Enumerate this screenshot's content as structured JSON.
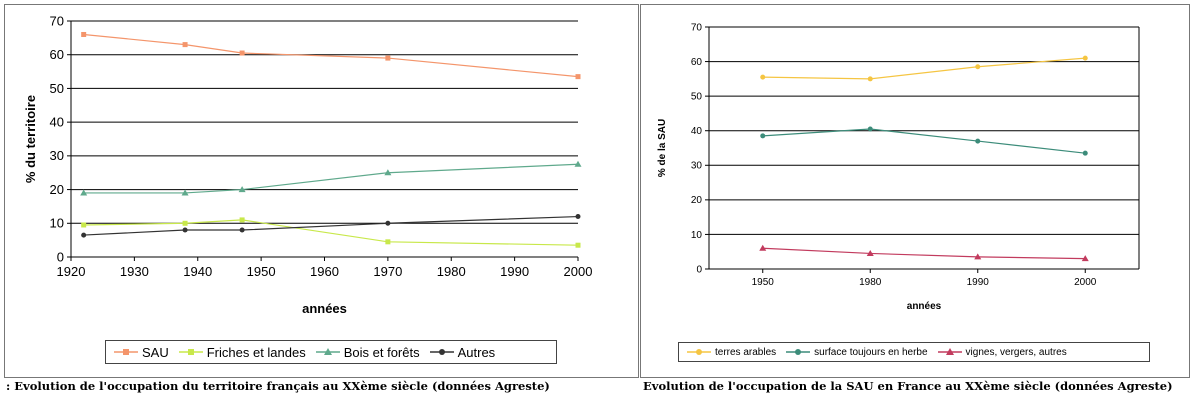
{
  "chart_data": [
    {
      "type": "line",
      "xlabel": "années",
      "ylabel": "% du territoire",
      "xlim": [
        1920,
        2000
      ],
      "ylim": [
        0,
        70
      ],
      "xticks": [
        1920,
        1930,
        1940,
        1950,
        1960,
        1970,
        1980,
        1990,
        2000
      ],
      "yticks": [
        0,
        10,
        20,
        30,
        40,
        50,
        60,
        70
      ],
      "legend_position": "bottom",
      "grid": "horizontal",
      "caption": ": Evolution de l'occupation du territoire français au XXème siècle (données Agreste)",
      "series": [
        {
          "name": "SAU",
          "color": "#f4956b",
          "marker": "square",
          "x": [
            1922,
            1938,
            1947,
            1970,
            2000
          ],
          "y": [
            66,
            63,
            60.5,
            59,
            53.5
          ]
        },
        {
          "name": "Friches et landes",
          "color": "#c8e84a",
          "marker": "square",
          "x": [
            1922,
            1938,
            1947,
            1970,
            2000
          ],
          "y": [
            9.5,
            10,
            11,
            4.5,
            3.5
          ]
        },
        {
          "name": "Bois et forêts",
          "color": "#5fa98c",
          "marker": "triangle",
          "x": [
            1922,
            1938,
            1947,
            1970,
            2000
          ],
          "y": [
            19,
            19,
            20,
            25,
            27.5
          ]
        },
        {
          "name": "Autres",
          "color": "#333333",
          "marker": "circle",
          "x": [
            1922,
            1938,
            1947,
            1970,
            2000
          ],
          "y": [
            6.5,
            8,
            8,
            10,
            12
          ]
        }
      ]
    },
    {
      "type": "line",
      "xlabel": "années",
      "ylabel": "% de la SAU",
      "categories": [
        "1950",
        "1980",
        "1990",
        "2000"
      ],
      "ylim": [
        0,
        70
      ],
      "yticks": [
        0,
        10,
        20,
        30,
        40,
        50,
        60,
        70
      ],
      "legend_position": "bottom",
      "grid": "horizontal",
      "caption": "Evolution de l'occupation de la SAU en France au XXème siècle (données Agreste)",
      "series": [
        {
          "name": "terres arables",
          "color": "#f5c542",
          "marker": "circle",
          "values": [
            55.5,
            55,
            58.5,
            61
          ]
        },
        {
          "name": "surface toujours en herbe",
          "color": "#3c8c7a",
          "marker": "circle",
          "values": [
            38.5,
            40.5,
            37,
            33.5
          ]
        },
        {
          "name": "vignes, vergers, autres",
          "color": "#c23b5e",
          "marker": "triangle",
          "values": [
            6,
            4.5,
            3.5,
            3
          ]
        }
      ]
    }
  ]
}
